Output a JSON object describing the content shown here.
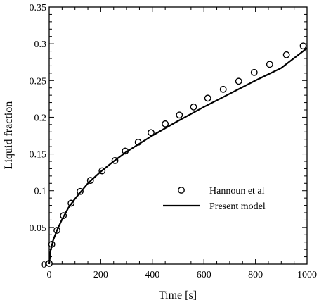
{
  "chart_data": {
    "type": "scatter",
    "xlabel": "Time [s]",
    "ylabel": "Liquid fraction",
    "xlim": [
      0,
      1000
    ],
    "ylim": [
      0,
      0.35
    ],
    "xticks": [
      0,
      200,
      400,
      600,
      800,
      1000
    ],
    "yticks": [
      0,
      0.05,
      0.1,
      0.15,
      0.2,
      0.25,
      0.3,
      0.35
    ],
    "xtick_labels": [
      "0",
      "200",
      "400",
      "600",
      "800",
      "1000"
    ],
    "ytick_labels": [
      "0",
      "0.05",
      "0.1",
      "0.15",
      "0.2",
      "0.25",
      "0.3",
      "0.35"
    ],
    "grid": false,
    "legend_position": "right",
    "series": [
      {
        "name": "Hannoun et al",
        "type": "scatter",
        "marker": "open-circle",
        "color": "#000000",
        "x": [
          0,
          10,
          30,
          55,
          85,
          120,
          160,
          205,
          255,
          295,
          345,
          395,
          450,
          505,
          560,
          615,
          675,
          735,
          795,
          855,
          920,
          985
        ],
        "y": [
          0.001,
          0.027,
          0.046,
          0.066,
          0.083,
          0.099,
          0.114,
          0.127,
          0.141,
          0.154,
          0.166,
          0.179,
          0.191,
          0.203,
          0.214,
          0.226,
          0.238,
          0.249,
          0.261,
          0.272,
          0.285,
          0.297
        ]
      },
      {
        "name": "Present model",
        "type": "line",
        "color": "#000000",
        "x": [
          0,
          5,
          15,
          30,
          50,
          75,
          100,
          150,
          200,
          250,
          300,
          400,
          500,
          600,
          700,
          800,
          900,
          1000
        ],
        "y": [
          0,
          0.018,
          0.032,
          0.046,
          0.061,
          0.077,
          0.089,
          0.11,
          0.126,
          0.14,
          0.153,
          0.175,
          0.195,
          0.214,
          0.232,
          0.25,
          0.267,
          0.294
        ]
      }
    ]
  }
}
